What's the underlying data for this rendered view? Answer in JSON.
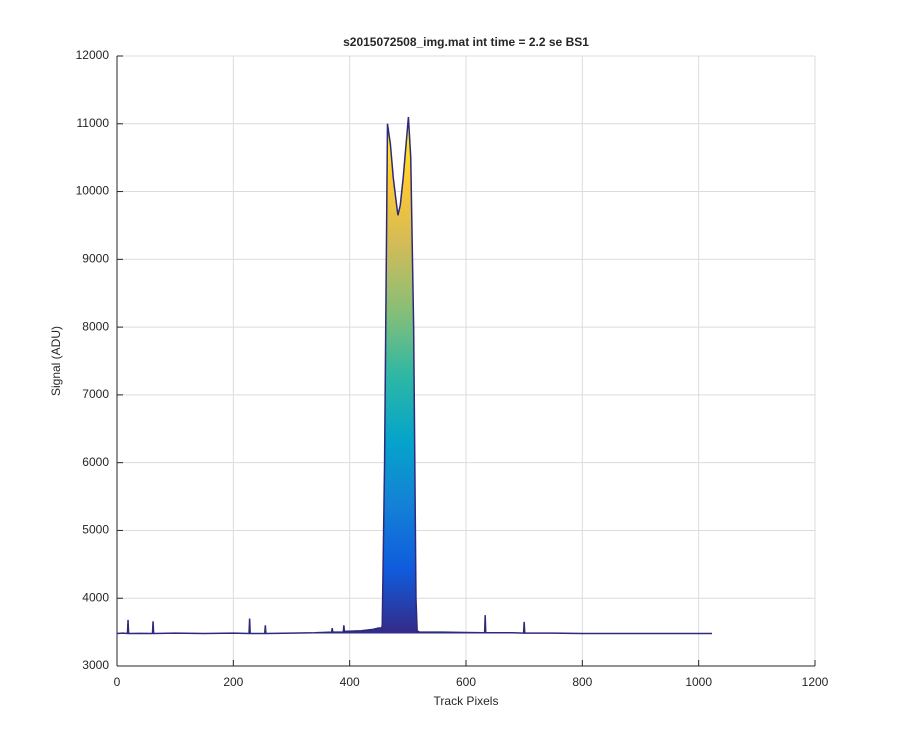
{
  "chart_data": {
    "type": "area",
    "title": "s2015072508_img.mat int time = 2.2 se   BS1",
    "xlabel": "Track Pixels",
    "ylabel": "Signal (ADU)",
    "x": [
      0,
      10,
      18,
      19,
      20,
      40,
      61,
      62,
      63,
      100,
      150,
      200,
      227,
      228,
      229,
      254,
      255,
      256,
      300,
      340,
      369,
      370,
      371,
      389,
      390,
      391,
      420,
      440,
      450,
      455,
      456,
      460,
      465,
      470,
      475,
      480,
      483,
      487,
      492,
      497,
      501,
      505,
      510,
      514,
      516,
      520,
      560,
      600,
      632,
      633,
      634,
      680,
      699,
      700,
      701,
      750,
      800,
      850,
      900,
      950,
      1000,
      1023
    ],
    "values": [
      3480,
      3485,
      3480,
      3680,
      3480,
      3482,
      3480,
      3660,
      3480,
      3485,
      3480,
      3485,
      3480,
      3700,
      3480,
      3480,
      3600,
      3480,
      3485,
      3490,
      3500,
      3560,
      3500,
      3500,
      3600,
      3510,
      3520,
      3540,
      3560,
      3560,
      3600,
      6000,
      11000,
      10700,
      10200,
      9850,
      9650,
      9800,
      10200,
      10700,
      11100,
      10500,
      8000,
      4000,
      3520,
      3500,
      3500,
      3495,
      3490,
      3750,
      3490,
      3490,
      3485,
      3650,
      3485,
      3485,
      3480,
      3480,
      3480,
      3480,
      3480,
      3480
    ],
    "line_color": "#2e2a7a",
    "colormap": [
      "#352a87",
      "#0f5cdd",
      "#1481d6",
      "#06a4ca",
      "#2eb7a4",
      "#87bf77",
      "#d1bb59",
      "#fec832",
      "#f9fb0e"
    ],
    "xlim": [
      0,
      1200
    ],
    "xticks": [
      0,
      200,
      400,
      600,
      800,
      1000,
      1200
    ],
    "ylim": [
      3000,
      12000
    ],
    "yticks": [
      3000,
      4000,
      5000,
      6000,
      7000,
      8000,
      9000,
      10000,
      11000,
      12000
    ],
    "grid": true
  }
}
